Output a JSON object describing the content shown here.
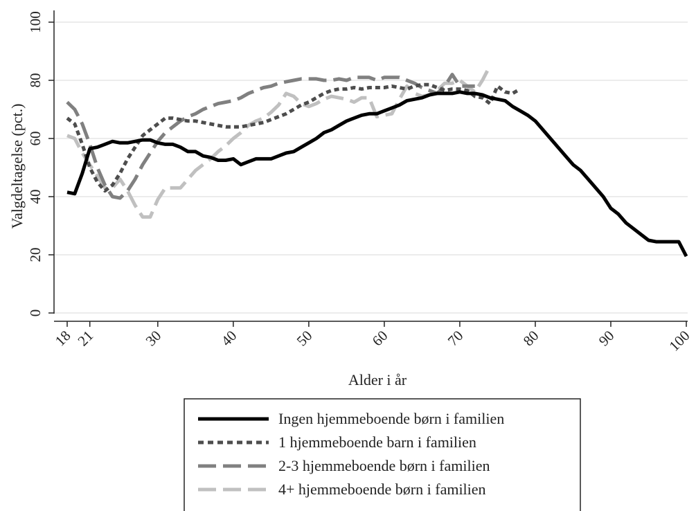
{
  "chart_data": {
    "type": "line",
    "title": "",
    "xlabel": "Alder i år",
    "ylabel": "Valgdeltagelse (pct.)",
    "xlim": [
      18,
      100
    ],
    "ylim": [
      0,
      100
    ],
    "x_ticks": [
      18,
      21,
      30,
      40,
      50,
      60,
      70,
      80,
      90,
      100
    ],
    "y_ticks": [
      0,
      20,
      40,
      60,
      80,
      100
    ],
    "grid": "horizontal",
    "legend_position": "bottom",
    "series": [
      {
        "name": "Ingen hjemmeboende børn i familien",
        "color": "#000000",
        "dash": "solid",
        "x": [
          18,
          19,
          20,
          21,
          22,
          23,
          24,
          25,
          26,
          27,
          28,
          29,
          30,
          31,
          32,
          33,
          34,
          35,
          36,
          37,
          38,
          39,
          40,
          41,
          42,
          43,
          44,
          45,
          46,
          47,
          48,
          49,
          50,
          51,
          52,
          53,
          54,
          55,
          56,
          57,
          58,
          59,
          60,
          61,
          62,
          63,
          64,
          65,
          66,
          67,
          68,
          69,
          70,
          71,
          72,
          73,
          74,
          75,
          76,
          77,
          78,
          79,
          80,
          81,
          82,
          83,
          84,
          85,
          86,
          87,
          88,
          89,
          90,
          91,
          92,
          93,
          94,
          95,
          96,
          97,
          98,
          99,
          100
        ],
        "y": [
          41.5,
          41,
          48,
          56.5,
          57,
          58,
          59,
          58.5,
          58.5,
          59,
          59.5,
          59.5,
          58.5,
          58,
          58,
          57,
          55.5,
          55.5,
          54,
          53.5,
          52.5,
          52.5,
          53,
          51,
          52,
          53,
          53,
          53,
          54,
          55,
          55.5,
          57,
          58.5,
          60,
          62,
          63,
          64.5,
          66,
          67,
          68,
          68.5,
          68.5,
          69.5,
          70.5,
          71.5,
          73,
          73.5,
          74,
          75,
          75.5,
          75.5,
          75.5,
          76,
          75.5,
          75.5,
          75,
          74,
          73.5,
          73,
          71,
          69.5,
          68,
          66,
          63,
          60,
          57,
          54,
          51,
          49,
          46,
          43,
          40,
          36,
          34,
          31,
          29,
          27,
          25,
          24.5,
          24.5,
          24.5,
          24.5,
          19.5
        ]
      },
      {
        "name": "1 hjemmeboende barn i familien",
        "color": "#4d4d4d",
        "dash": "dot",
        "x": [
          18,
          19,
          20,
          21,
          22,
          23,
          24,
          25,
          26,
          27,
          28,
          29,
          30,
          31,
          32,
          33,
          34,
          35,
          36,
          37,
          38,
          39,
          40,
          41,
          42,
          43,
          44,
          45,
          46,
          47,
          48,
          49,
          50,
          51,
          52,
          53,
          54,
          55,
          56,
          57,
          58,
          59,
          60,
          61,
          62,
          63,
          64,
          65,
          66,
          67,
          68,
          69,
          70,
          71,
          72,
          73,
          74,
          75,
          76,
          77,
          78
        ],
        "y": [
          67,
          65,
          58,
          50,
          45,
          42,
          44,
          48,
          53,
          57,
          61,
          63,
          65,
          67,
          67,
          66.5,
          66,
          66,
          65.5,
          65,
          64.5,
          64,
          64,
          64,
          64.5,
          65,
          65.5,
          66.5,
          67.5,
          68.5,
          70,
          71.5,
          72.5,
          74,
          75.5,
          76.5,
          77,
          77,
          77.5,
          77,
          77.5,
          77.5,
          77.5,
          78,
          77.5,
          77,
          78,
          78.5,
          78.5,
          77.5,
          76.5,
          77,
          77,
          76.5,
          74.5,
          74,
          72,
          78,
          76,
          75.5,
          77
        ]
      },
      {
        "name": "2-3 hjemmeboende børn i familien",
        "color": "#808080",
        "dash": "longdash",
        "x": [
          18,
          19,
          20,
          21,
          22,
          23,
          24,
          25,
          26,
          27,
          28,
          29,
          30,
          31,
          32,
          33,
          34,
          35,
          36,
          37,
          38,
          39,
          40,
          41,
          42,
          43,
          44,
          45,
          46,
          47,
          48,
          49,
          50,
          51,
          52,
          53,
          54,
          55,
          56,
          57,
          58,
          59,
          60,
          61,
          62,
          63,
          64,
          65,
          66,
          67,
          68,
          69,
          70,
          71,
          72
        ],
        "y": [
          72.5,
          70,
          65,
          58,
          50,
          44,
          40,
          39.5,
          42,
          46,
          51,
          55,
          59,
          62,
          64,
          66,
          67.5,
          68.5,
          70,
          71,
          72,
          72.5,
          73,
          74,
          75.5,
          76.5,
          77.5,
          78,
          79,
          79.5,
          80,
          80.5,
          80.5,
          80.5,
          80,
          80,
          80.5,
          80,
          81,
          81,
          81,
          80,
          81,
          81,
          81,
          80,
          79,
          77.5,
          76.5,
          75.5,
          78,
          82,
          78,
          78,
          78
        ]
      },
      {
        "name": "4+ hjemmeboende børn i familien",
        "color": "#c0c0c0",
        "dash": "longdash",
        "x": [
          18,
          19,
          20,
          21,
          22,
          23,
          24,
          25,
          26,
          27,
          28,
          29,
          30,
          31,
          32,
          33,
          34,
          35,
          36,
          37,
          38,
          39,
          40,
          41,
          42,
          43,
          44,
          45,
          46,
          47,
          48,
          49,
          50,
          51,
          52,
          53,
          54,
          55,
          56,
          57,
          58,
          59,
          60,
          61,
          62,
          63,
          64,
          65,
          66,
          67,
          68,
          69,
          70,
          71,
          72,
          73,
          74
        ],
        "y": [
          61,
          60,
          55,
          51,
          47,
          43,
          43,
          46,
          42,
          37,
          33,
          33,
          39,
          43,
          43,
          43,
          46,
          49,
          51,
          53,
          55.5,
          57.5,
          60,
          62,
          64.5,
          66,
          67,
          69,
          71.5,
          75.5,
          74.5,
          72,
          71,
          72,
          73.5,
          74.5,
          74,
          73.5,
          72.5,
          74,
          74,
          67.5,
          68,
          68.5,
          73.5,
          78,
          75.5,
          74.5,
          75,
          76.5,
          79,
          79,
          80,
          78,
          76,
          80,
          85
        ]
      }
    ]
  }
}
